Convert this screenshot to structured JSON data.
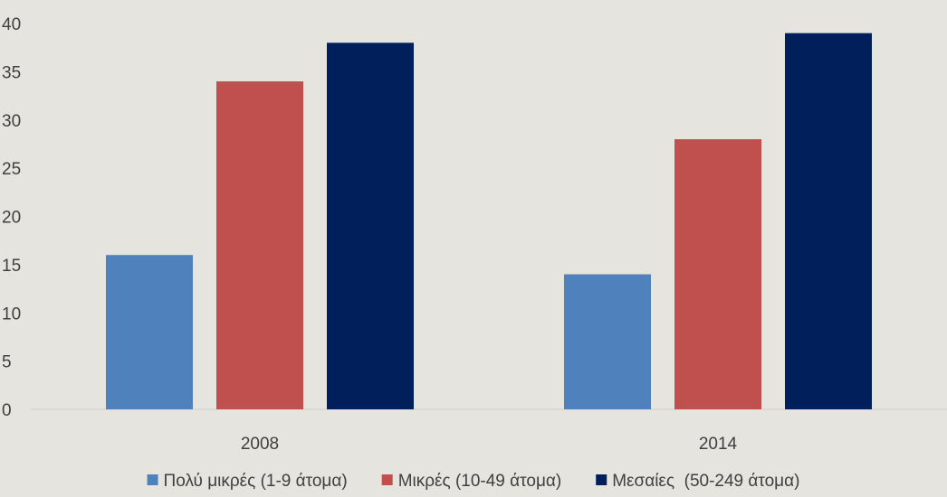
{
  "chart_data": {
    "type": "bar",
    "title": "",
    "xlabel": "",
    "ylabel": "",
    "categories": [
      "2008",
      "2014"
    ],
    "series": [
      {
        "name": "Πολύ μικρές (1-9 άτομα)",
        "color": "#4f81bd",
        "values": [
          16,
          14
        ]
      },
      {
        "name": "Μικρές (10-49 άτομα)",
        "color": "#c0504d",
        "values": [
          34,
          28
        ]
      },
      {
        "name": "Μεσαίες  (50-249 άτομα)",
        "color": "#001f5b",
        "values": [
          38,
          39
        ]
      }
    ],
    "ylim": [
      0,
      40
    ],
    "yticks": [
      0,
      5,
      10,
      15,
      20,
      25,
      30,
      35,
      40
    ],
    "grid": false,
    "legend_position": "bottom"
  }
}
